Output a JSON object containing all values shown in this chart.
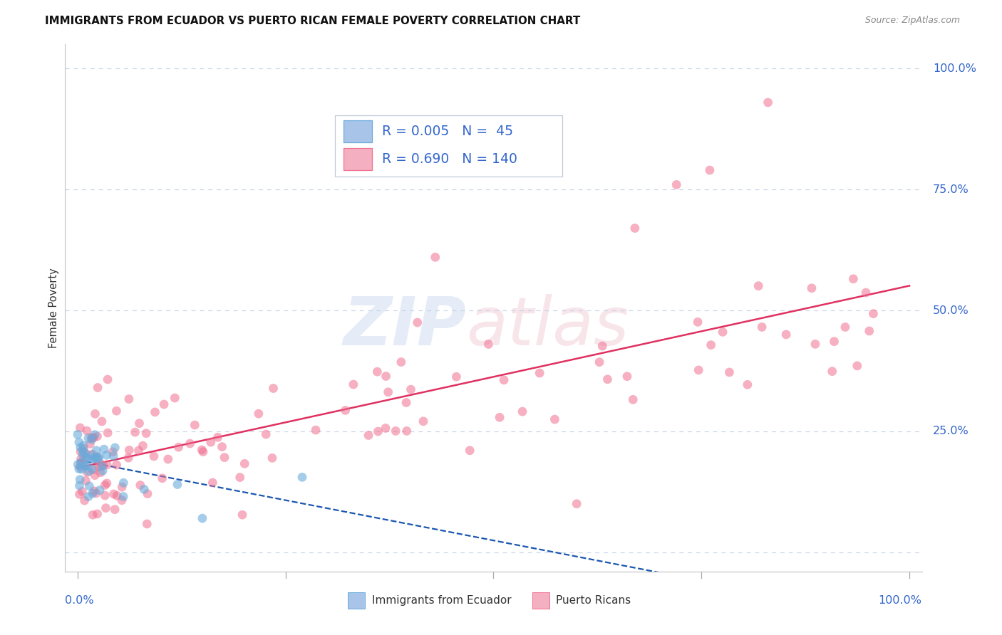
{
  "title": "IMMIGRANTS FROM ECUADOR VS PUERTO RICAN FEMALE POVERTY CORRELATION CHART",
  "source": "Source: ZipAtlas.com",
  "ylabel": "Female Poverty",
  "label_ecuador": "Immigrants from Ecuador",
  "label_pr": "Puerto Ricans",
  "legend_r1": "R = 0.005",
  "legend_n1": "N =  45",
  "legend_r2": "R = 0.690",
  "legend_n2": "N = 140",
  "ecuador_dot_color": "#6aabdb",
  "ecuador_fill_color": "#a8c4e8",
  "ecuador_line_color": "#1a56b0",
  "pr_dot_color": "#f07090",
  "pr_fill_color": "#f4b0c0",
  "pr_line_color": "#e03060",
  "background_color": "#ffffff",
  "grid_color": "#c8d4e8",
  "text_blue": "#3366cc",
  "text_dark": "#333333",
  "text_gray": "#888888",
  "ytick_positions": [
    0.0,
    0.25,
    0.5,
    0.75,
    1.0
  ],
  "ytick_labels": [
    "",
    "25.0%",
    "50.0%",
    "75.0%",
    "100.0%"
  ],
  "xtick_label_left": "0.0%",
  "xtick_label_right": "100.0%"
}
